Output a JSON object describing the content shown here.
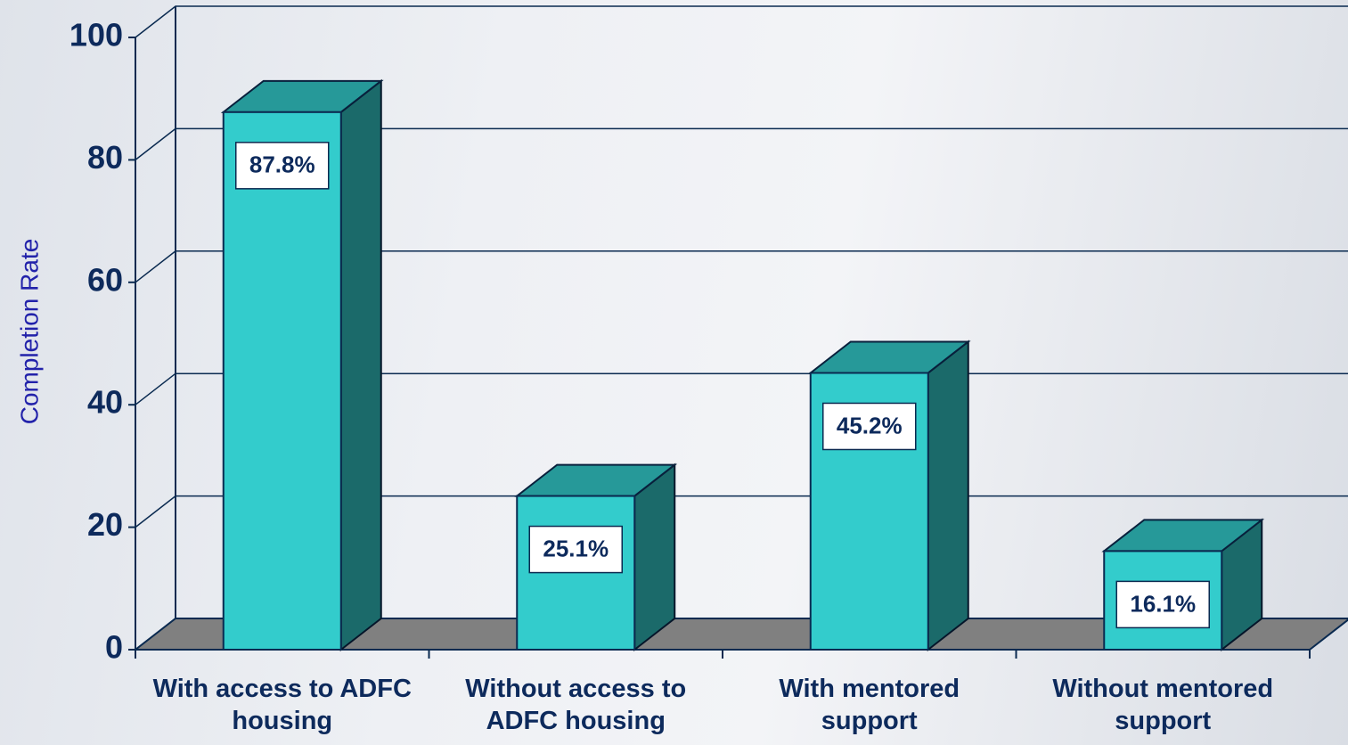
{
  "chart_data": {
    "type": "bar3d",
    "y_label": "Completion Rate",
    "categories": [
      "With access to ADFC housing",
      "Without access to ADFC housing",
      "With mentored support",
      "Without mentored support"
    ],
    "values": [
      87.8,
      25.1,
      45.2,
      16.1
    ],
    "value_labels": [
      "87.8%",
      "25.1%",
      "45.2%",
      "16.1%"
    ],
    "color": "#33cccc",
    "ylim": [
      0,
      100
    ],
    "yticks": [
      0,
      20,
      40,
      60,
      80,
      100
    ],
    "grid": true
  }
}
